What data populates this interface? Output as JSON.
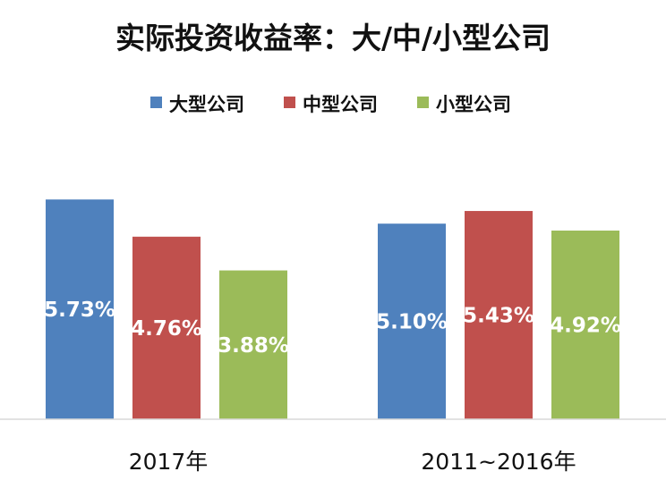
{
  "chart_data": {
    "type": "bar",
    "title": "实际投资收益率：大/中/小型公司",
    "categories": [
      "2017年",
      "2011~2016年"
    ],
    "series": [
      {
        "name": "大型公司",
        "values": [
          5.73,
          5.1
        ],
        "labels": [
          "5.73%",
          "5.10%"
        ],
        "color": "#4F81BD"
      },
      {
        "name": "中型公司",
        "values": [
          4.76,
          5.43
        ],
        "labels": [
          "4.76%",
          "5.43%"
        ],
        "color": "#C0504D"
      },
      {
        "name": "小型公司",
        "values": [
          3.88,
          4.92
        ],
        "labels": [
          "3.88%",
          "4.92%"
        ],
        "color": "#9BBB59"
      }
    ],
    "ylim": [
      0,
      7
    ],
    "grid": false,
    "legend_position": "top",
    "xlabel": "",
    "ylabel": ""
  }
}
